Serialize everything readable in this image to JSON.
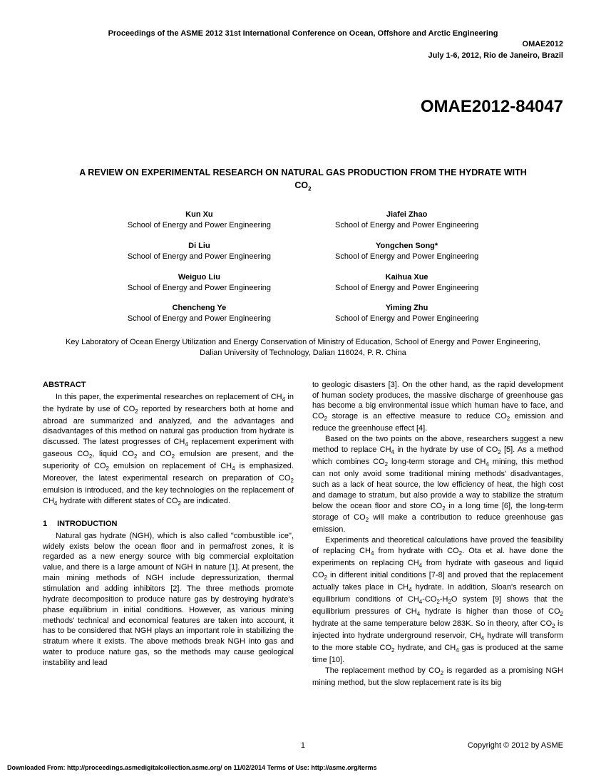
{
  "header": {
    "line1": "Proceedings of the ASME 2012 31st International Conference on Ocean, Offshore and Arctic Engineering",
    "line2": "OMAE2012",
    "line3": "July 1-6, 2012, Rio de Janeiro, Brazil"
  },
  "paper_id": "OMAE2012-84047",
  "title": "A REVIEW ON EXPERIMENTAL RESEARCH ON NATURAL GAS PRODUCTION FROM THE HYDRATE WITH CO₂",
  "authors_left": [
    {
      "name": "Kun Xu",
      "aff": "School of Energy and Power Engineering"
    },
    {
      "name": "Di Liu",
      "aff": "School of Energy and Power Engineering"
    },
    {
      "name": "Weiguo Liu",
      "aff": "School of Energy and Power Engineering"
    },
    {
      "name": "Chencheng Ye",
      "aff": "School of Energy and Power Engineering"
    }
  ],
  "authors_right": [
    {
      "name": "Jiafei Zhao",
      "aff": "School of Energy and Power Engineering"
    },
    {
      "name": "Yongchen Song*",
      "aff": "School of Energy and Power Engineering"
    },
    {
      "name": "Kaihua Xue",
      "aff": "School of Energy and Power Engineering"
    },
    {
      "name": "Yiming Zhu",
      "aff": "School of Energy and Power Engineering"
    }
  ],
  "affiliation": "Key Laboratory of Ocean Energy Utilization and Energy Conservation of Ministry of Education, School of Energy and Power Engineering, Dalian University of Technology, Dalian 116024, P. R. China",
  "abstract_head": "ABSTRACT",
  "intro_num": "1",
  "intro_head": "INTRODUCTION",
  "page_num": "1",
  "copyright": "Copyright © 2012 by ASME",
  "download": "Downloaded From: http://proceedings.asmedigitalcollection.asme.org/ on 11/02/2014 Terms of Use: http://asme.org/terms"
}
